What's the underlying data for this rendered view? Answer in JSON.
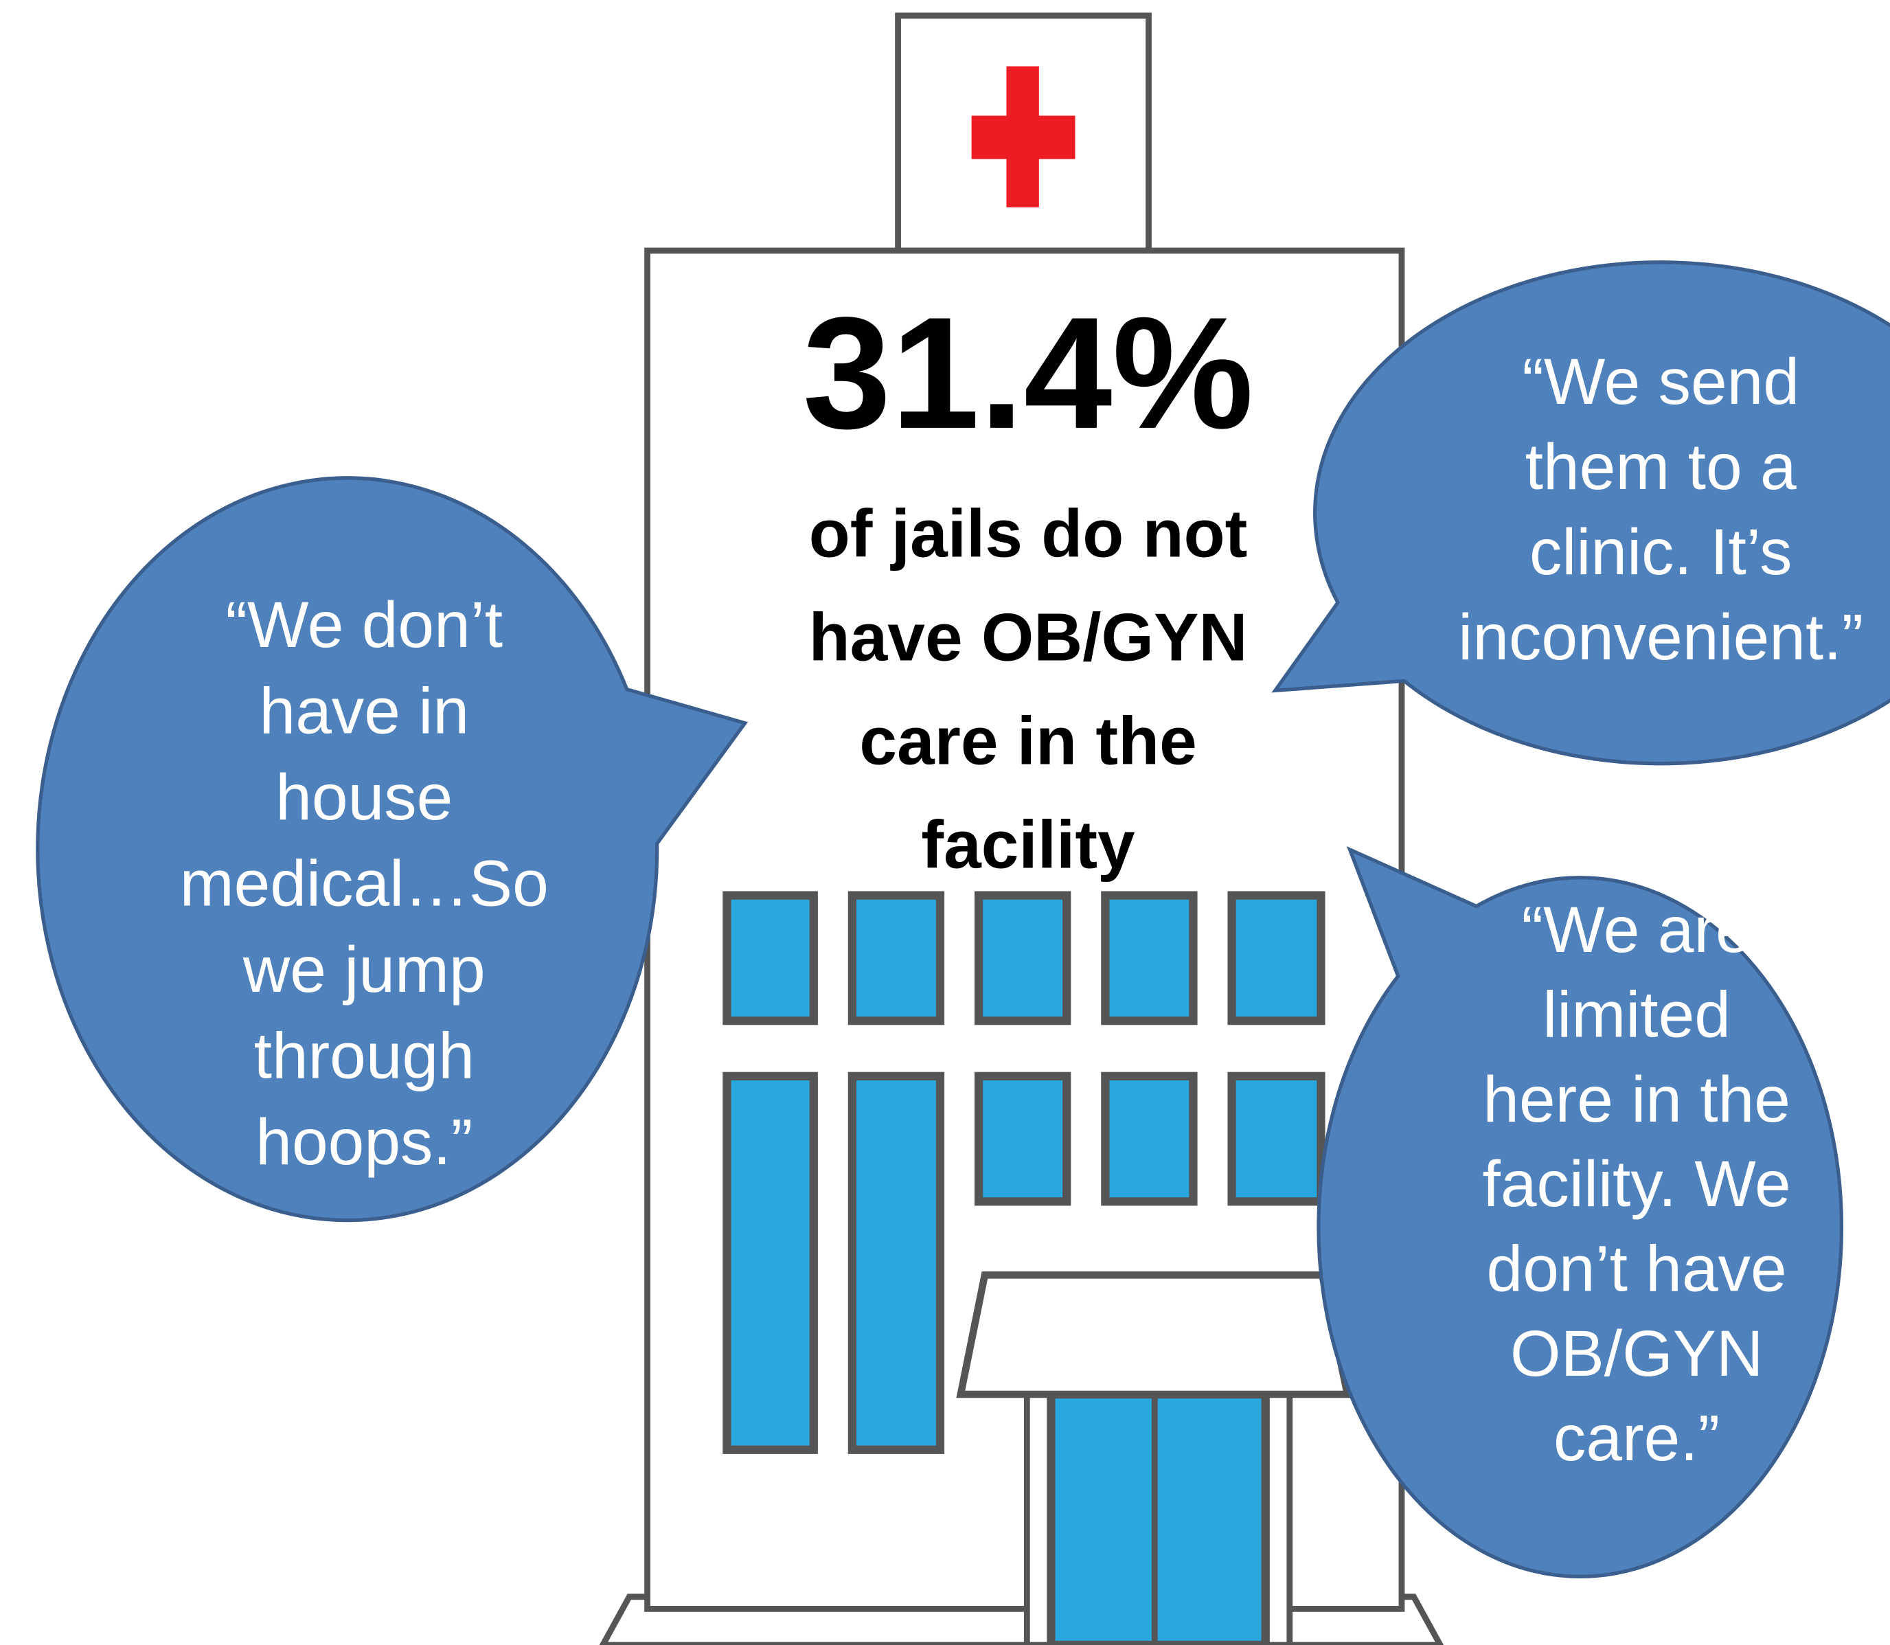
{
  "stat": {
    "value": "31.4%",
    "caption": [
      "of jails do not",
      "have OB/GYN",
      "care in the",
      "facility"
    ]
  },
  "quotes": [
    {
      "lines": [
        "“We don’t",
        "have in",
        "house",
        "medical…So",
        "we jump",
        "through",
        "hoops.”"
      ]
    },
    {
      "lines": [
        "“We send",
        "them to a",
        "clinic. It’s",
        "inconvenient.”"
      ]
    },
    {
      "lines": [
        "“We are",
        "limited",
        "here in the",
        "facility. We",
        "don’t have",
        "OB/GYN",
        "care.”"
      ]
    }
  ]
}
